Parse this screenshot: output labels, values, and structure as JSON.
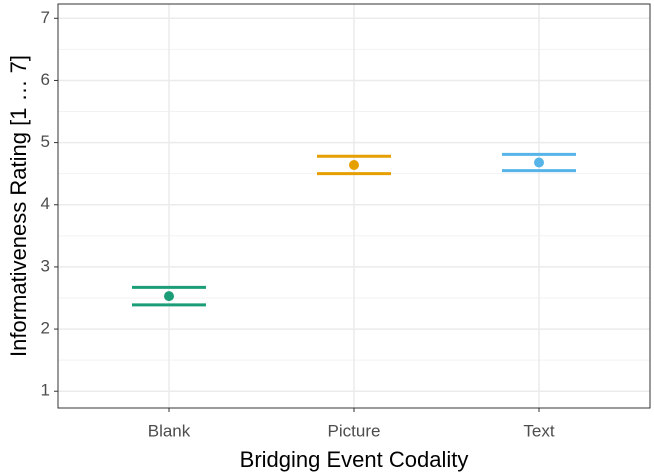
{
  "chart_data": {
    "type": "errorpoint",
    "xlabel": "Bridging Event Codality",
    "ylabel": "Informativeness Rating [1 … 7]",
    "categories": [
      "Blank",
      "Picture",
      "Text"
    ],
    "values": [
      2.53,
      4.64,
      4.68
    ],
    "errors": [
      0.14,
      0.14,
      0.13
    ],
    "colors": [
      "#1b9e77",
      "#e69f00",
      "#56b4e9"
    ],
    "ylim": [
      0.73,
      7.23
    ],
    "yticks": [
      1,
      2,
      3,
      4,
      5,
      6,
      7
    ],
    "grid": true
  }
}
